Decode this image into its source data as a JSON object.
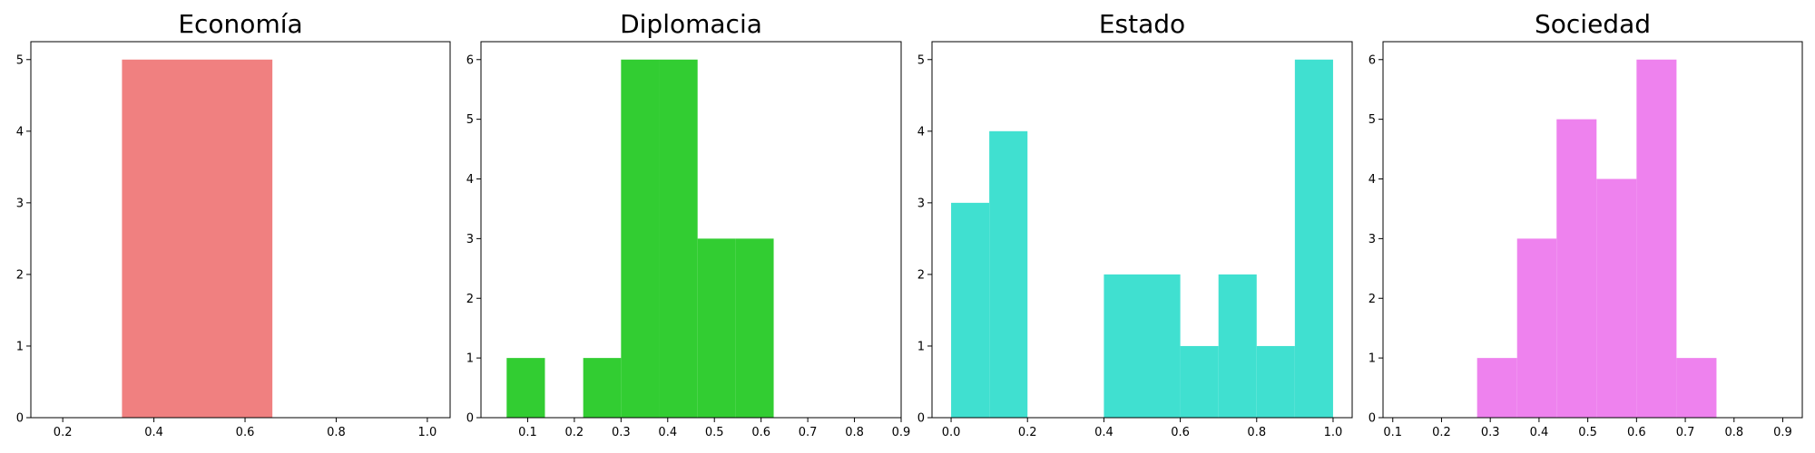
{
  "chart_data": [
    {
      "type": "bar",
      "title": "Economía",
      "color": "#F08080",
      "xlim": [
        0.13,
        1.05
      ],
      "ylim": [
        0,
        5.25
      ],
      "xticks": [
        0.2,
        0.4,
        0.6,
        0.8,
        1.0
      ],
      "xtick_labels": [
        "0.2",
        "0.4",
        "0.6",
        "0.8",
        "1.0"
      ],
      "yticks": [
        0,
        1,
        2,
        3,
        4,
        5
      ],
      "bins": [
        {
          "x0": 0.33,
          "x1": 0.66,
          "count": 5
        }
      ]
    },
    {
      "type": "bar",
      "title": "Diplomacia",
      "color": "#32CD32",
      "xlim": [
        0.0,
        0.9
      ],
      "ylim": [
        0,
        6.3
      ],
      "xticks": [
        0.1,
        0.2,
        0.3,
        0.4,
        0.5,
        0.6,
        0.7,
        0.8,
        0.9
      ],
      "xtick_labels": [
        "0.1",
        "0.2",
        "0.3",
        "0.4",
        "0.5",
        "0.6",
        "0.7",
        "0.8",
        "0.9"
      ],
      "yticks": [
        0,
        1,
        2,
        3,
        4,
        5,
        6
      ],
      "bins": [
        {
          "x0": 0.055,
          "x1": 0.137,
          "count": 1
        },
        {
          "x0": 0.137,
          "x1": 0.219,
          "count": 0
        },
        {
          "x0": 0.219,
          "x1": 0.3,
          "count": 1
        },
        {
          "x0": 0.3,
          "x1": 0.382,
          "count": 6
        },
        {
          "x0": 0.382,
          "x1": 0.464,
          "count": 6
        },
        {
          "x0": 0.464,
          "x1": 0.545,
          "count": 3
        },
        {
          "x0": 0.545,
          "x1": 0.627,
          "count": 3
        }
      ]
    },
    {
      "type": "bar",
      "title": "Estado",
      "color": "#40E0D0",
      "xlim": [
        -0.05,
        1.05
      ],
      "ylim": [
        0,
        5.25
      ],
      "xticks": [
        0.0,
        0.2,
        0.4,
        0.6,
        0.8,
        1.0
      ],
      "xtick_labels": [
        "0.0",
        "0.2",
        "0.4",
        "0.6",
        "0.8",
        "1.0"
      ],
      "yticks": [
        0,
        1,
        2,
        3,
        4,
        5
      ],
      "bins": [
        {
          "x0": 0.0,
          "x1": 0.1,
          "count": 3
        },
        {
          "x0": 0.1,
          "x1": 0.2,
          "count": 4
        },
        {
          "x0": 0.2,
          "x1": 0.3,
          "count": 0
        },
        {
          "x0": 0.3,
          "x1": 0.4,
          "count": 0
        },
        {
          "x0": 0.4,
          "x1": 0.5,
          "count": 2
        },
        {
          "x0": 0.5,
          "x1": 0.6,
          "count": 2
        },
        {
          "x0": 0.6,
          "x1": 0.7,
          "count": 1
        },
        {
          "x0": 0.7,
          "x1": 0.8,
          "count": 2
        },
        {
          "x0": 0.8,
          "x1": 0.9,
          "count": 1
        },
        {
          "x0": 0.9,
          "x1": 1.0,
          "count": 5
        }
      ]
    },
    {
      "type": "bar",
      "title": "Sociedad",
      "color": "#EE82EE",
      "xlim": [
        0.08,
        0.94
      ],
      "ylim": [
        0,
        6.3
      ],
      "xticks": [
        0.1,
        0.2,
        0.3,
        0.4,
        0.5,
        0.6,
        0.7,
        0.8,
        0.9
      ],
      "xtick_labels": [
        "0.1",
        "0.2",
        "0.3",
        "0.4",
        "0.5",
        "0.6",
        "0.7",
        "0.8",
        "0.9"
      ],
      "yticks": [
        0,
        1,
        2,
        3,
        4,
        5,
        6
      ],
      "bins": [
        {
          "x0": 0.273,
          "x1": 0.355,
          "count": 1
        },
        {
          "x0": 0.355,
          "x1": 0.436,
          "count": 3
        },
        {
          "x0": 0.436,
          "x1": 0.518,
          "count": 5
        },
        {
          "x0": 0.518,
          "x1": 0.6,
          "count": 4
        },
        {
          "x0": 0.6,
          "x1": 0.682,
          "count": 6
        },
        {
          "x0": 0.682,
          "x1": 0.764,
          "count": 1
        }
      ]
    }
  ]
}
